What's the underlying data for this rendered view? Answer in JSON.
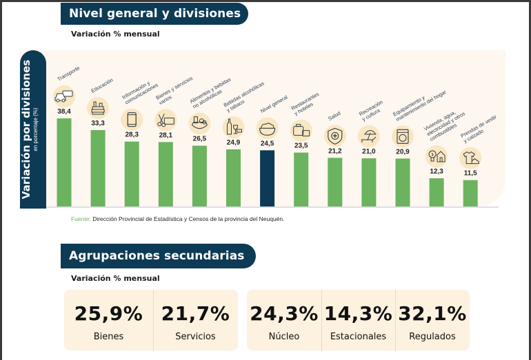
{
  "section1": {
    "title": "Nivel general y divisiones",
    "subtitle": "Variación % mensual"
  },
  "chart_data": {
    "type": "bar",
    "title": "Nivel general y divisiones",
    "subtitle": "Variación % mensual",
    "ylabel": "Variación por divisiones",
    "ylabel_sub": "en porcentaje (%)",
    "xlabel": "",
    "ylim": [
      0,
      40
    ],
    "grid": false,
    "legend": "none",
    "highlight_color": "#0d3b55",
    "bar_color": "#6bb35f",
    "categories": [
      "Transporte",
      "Educación",
      "Información y comunicaciones",
      "Bienes y servicios varios",
      "Alimentos y bebidas no alcohólicas",
      "Bebidas alcohólicas y tabaco",
      "Nivel general",
      "Restaurantes y hoteles",
      "Salud",
      "Recreación y cultura",
      "Equipamiento y mantenimiento del hogar",
      "Vivienda, agua, electricidad y otros combustibles",
      "Prendas de vestir y calzado"
    ],
    "category_lines": [
      [
        "Transporte"
      ],
      [
        "Educación"
      ],
      [
        "Información y",
        "comunicaciones"
      ],
      [
        "Bienes y servicios",
        "varios"
      ],
      [
        "Alimentos y bebidas",
        "no alcohólicas"
      ],
      [
        "Bebidas alcohólicas",
        "y tabaco"
      ],
      [
        "Nivel general"
      ],
      [
        "Restaurantes",
        "y hoteles"
      ],
      [
        "Salud"
      ],
      [
        "Recreación",
        "y cultura"
      ],
      [
        "Equipamiento y",
        "mantenimiento del hogar"
      ],
      [
        "Vivienda, agua,",
        "electricidad y otros",
        "combustibles"
      ],
      [
        "Prendas de vestir",
        "y calzado"
      ]
    ],
    "values": [
      38.4,
      33.3,
      28.3,
      28.1,
      26.5,
      24.9,
      24.5,
      23.5,
      21.2,
      21.0,
      20.9,
      12.3,
      11.5
    ],
    "value_labels": [
      "38,4",
      "33,3",
      "28,3",
      "28,1",
      "26,5",
      "24,9",
      "24,5",
      "23,5",
      "21,2",
      "21,0",
      "20,9",
      "12,3",
      "11,5"
    ],
    "icons": [
      "car-bus-icon",
      "books-icon",
      "smartphone-icon",
      "scissors-card-icon",
      "groceries-icon",
      "wine-icon",
      "bowl-icon",
      "luggage-icon",
      "health-shield-icon",
      "beach-chair-icon",
      "washing-machine-icon",
      "bulb-house-icon",
      "shirt-shoe-icon"
    ],
    "highlight_index": 6
  },
  "source": {
    "label": "Fuente:",
    "text": "Dirección Provincial de Estadística y Censos de la provincia del Neuquén."
  },
  "section2": {
    "title": "Agrupaciones secundarias",
    "subtitle": "Variación % mensual",
    "stats": [
      {
        "value": "25,9%",
        "label": "Bienes"
      },
      {
        "value": "21,7%",
        "label": "Servicios"
      },
      {
        "value": "24,3%",
        "label": "Núcleo"
      },
      {
        "value": "14,3%",
        "label": "Estacionales"
      },
      {
        "value": "32,1%",
        "label": "Regulados"
      }
    ]
  }
}
